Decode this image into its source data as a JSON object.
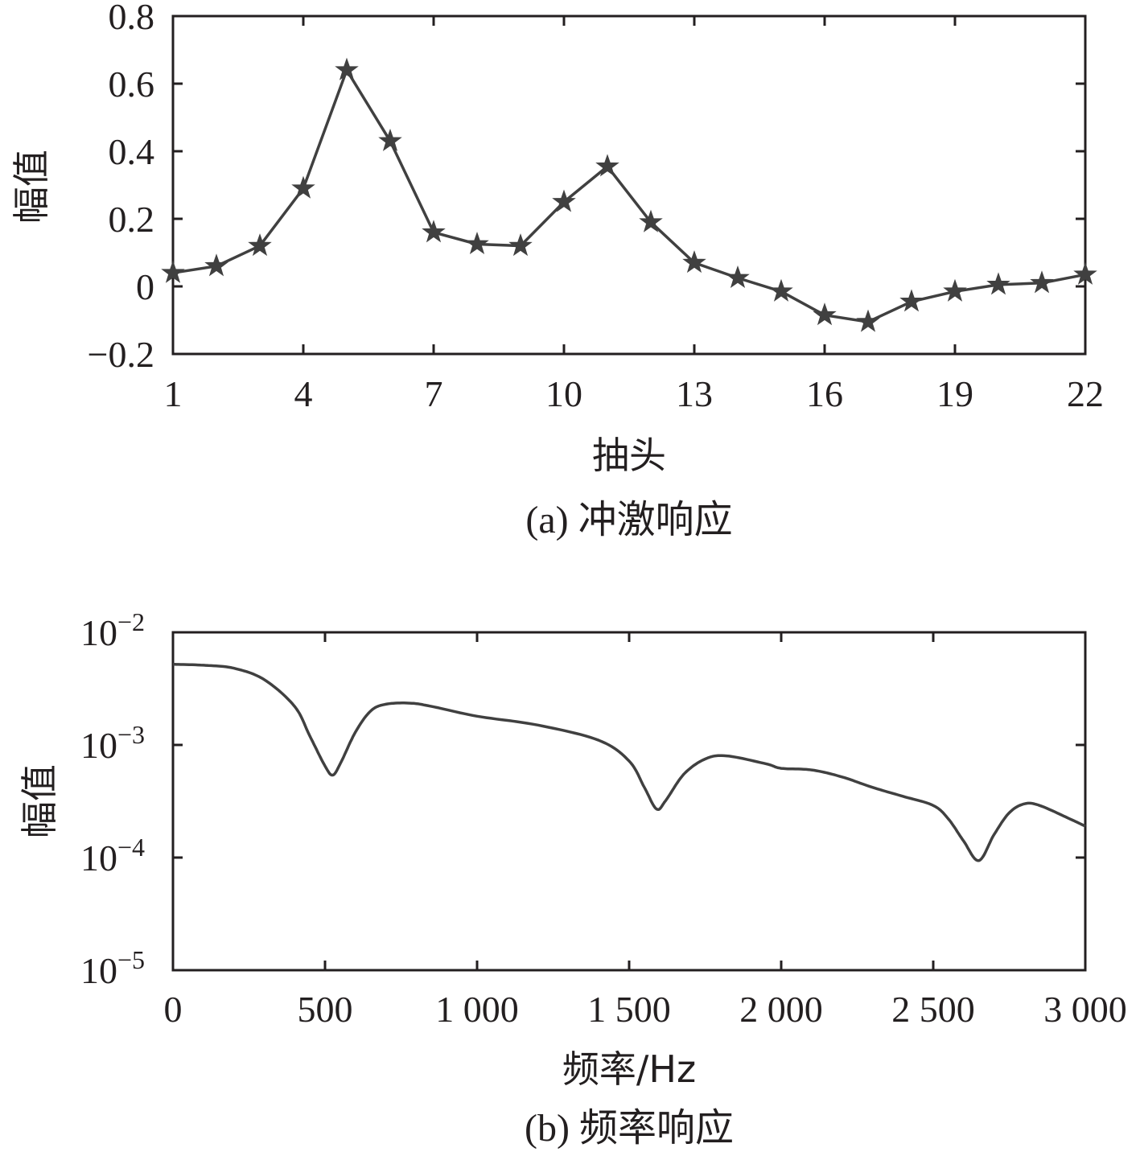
{
  "chart_data": [
    {
      "type": "line",
      "caption": "(a) 冲激响应",
      "xlabel": "抽头",
      "ylabel": "幅值",
      "xlim": [
        1,
        22
      ],
      "ylim": [
        -0.2,
        0.8
      ],
      "xticks": [
        1,
        4,
        7,
        10,
        13,
        16,
        19,
        22
      ],
      "xtick_labels": [
        "1",
        "4",
        "7",
        "10",
        "13",
        "16",
        "19",
        "22"
      ],
      "yticks": [
        -0.2,
        0,
        0.2,
        0.4,
        0.6,
        0.8
      ],
      "ytick_labels": [
        "−0.2",
        "0",
        "0.2",
        "0.4",
        "0.6",
        "0.8"
      ],
      "marker": "star",
      "grid": false,
      "color": "#404040",
      "x": [
        1,
        2,
        3,
        4,
        5,
        6,
        7,
        8,
        9,
        10,
        11,
        12,
        13,
        14,
        15,
        16,
        17,
        18,
        19,
        20,
        21,
        22
      ],
      "values": [
        0.04,
        0.06,
        0.12,
        0.29,
        0.64,
        0.43,
        0.16,
        0.125,
        0.12,
        0.25,
        0.355,
        0.19,
        0.07,
        0.025,
        -0.015,
        -0.085,
        -0.105,
        -0.045,
        -0.015,
        0.005,
        0.01,
        0.035
      ]
    },
    {
      "type": "line",
      "caption": "(b) 频率响应",
      "xlabel": "频率/Hz",
      "ylabel": "幅值",
      "xlim": [
        0,
        3000
      ],
      "ylim": [
        1e-05,
        0.01
      ],
      "yscale": "log",
      "xticks": [
        0,
        500,
        1000,
        1500,
        2000,
        2500,
        3000
      ],
      "xtick_labels": [
        "0",
        "500",
        "1 000",
        "1 500",
        "2 000",
        "2 500",
        "3 000"
      ],
      "yticks": [
        0.01,
        0.001,
        0.0001,
        1e-05
      ],
      "ytick_labels": [
        {
          "base": "10",
          "exp": "−2"
        },
        {
          "base": "10",
          "exp": "−3"
        },
        {
          "base": "10",
          "exp": "−4"
        },
        {
          "base": "10",
          "exp": "−5"
        }
      ],
      "grid": false,
      "color": "#404040",
      "x": [
        0,
        100,
        200,
        300,
        400,
        450,
        500,
        525,
        550,
        600,
        650,
        700,
        780,
        850,
        1000,
        1200,
        1400,
        1500,
        1550,
        1590,
        1620,
        1680,
        1750,
        1820,
        1950,
        2000,
        2100,
        2200,
        2300,
        2400,
        2500,
        2550,
        2600,
        2650,
        2700,
        2750,
        2800,
        2850,
        2950,
        3000
      ],
      "values": [
        0.0052,
        0.0051,
        0.0048,
        0.0038,
        0.0022,
        0.0012,
        0.00065,
        0.00054,
        0.00068,
        0.0013,
        0.002,
        0.0023,
        0.00235,
        0.0022,
        0.0018,
        0.0015,
        0.0011,
        0.00072,
        0.00042,
        0.00027,
        0.00032,
        0.00055,
        0.00075,
        0.0008,
        0.00068,
        0.00062,
        0.0006,
        0.00052,
        0.00042,
        0.00035,
        0.00029,
        0.00022,
        0.00014,
        9.4e-05,
        0.00016,
        0.00025,
        0.0003,
        0.00029,
        0.00022,
        0.00019
      ]
    }
  ]
}
